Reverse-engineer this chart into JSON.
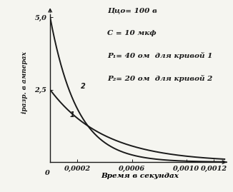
{
  "title": "",
  "xlabel": "Время в секундах",
  "ylabel": "іразр. в амперах",
  "Uc0": 100,
  "C": 1e-05,
  "R1": 40,
  "R2": 20,
  "xlim": [
    0,
    0.00132
  ],
  "ylim": [
    0,
    5.5
  ],
  "yticks": [
    2.5,
    5.0
  ],
  "xticks": [
    0.0002,
    0.0006,
    0.001,
    0.0012
  ],
  "xtick_labels": [
    "0,0002",
    "0,0006",
    "0,0010",
    "0,0012"
  ],
  "ytick_labels": [
    "2,5",
    "5,0"
  ],
  "annotation_lines": [
    "Ццо= 100 в",
    "С = 10 мкф",
    "Р₁= 40 ом  для кривой 1",
    "Р₂= 20 ом  для кривой 2"
  ],
  "curve1_label": "1",
  "curve2_label": "2",
  "line_color": "#1a1a1a",
  "bg_color": "#f5f5f0",
  "font_size": 7.0,
  "annot_fontsize": 7.5
}
